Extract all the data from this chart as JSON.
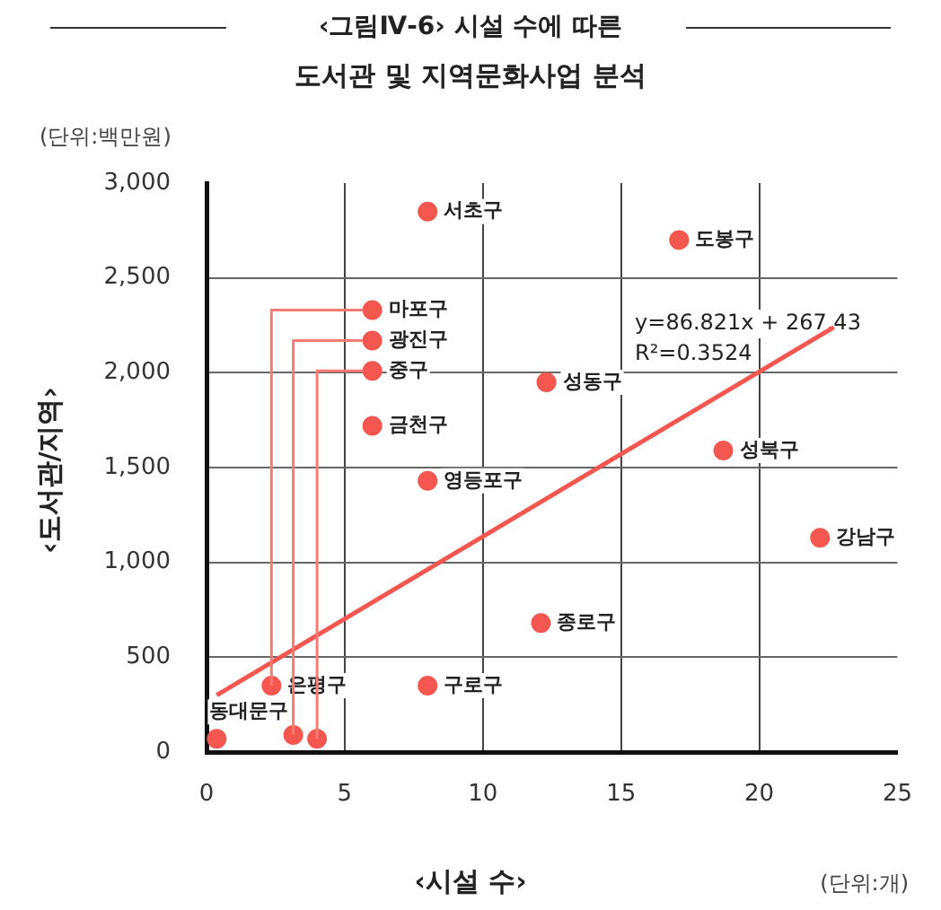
{
  "chart_data": {
    "type": "scatter",
    "title": "‹그림Ⅳ-6› 시설 수에 따른",
    "subtitle": "도서관 및 지역문화사업 분석",
    "xlabel": "‹시설 수›",
    "ylabel": "‹도서관/지역›",
    "annotations": [
      "(단위:백만원)",
      "(단위:개)",
      "y=86.821x + 267.43",
      "R²=0.3524"
    ],
    "series": [
      {
        "color": "#f4574f",
        "x": [
          8,
          17.1,
          6,
          6,
          6,
          6,
          12.3,
          8,
          18.7,
          22.2,
          12.1,
          8,
          2.35,
          0.37,
          3.14,
          4
        ],
        "values": [
          2850,
          2700,
          2330,
          2170,
          2010,
          1720,
          1950,
          1430,
          1590,
          1130,
          680,
          350,
          350,
          70,
          90,
          70
        ],
        "value_labels": [
          "서초구",
          "도봉구",
          "마포구",
          "광진구",
          "중구",
          "금천구",
          "성동구",
          "영등포구",
          "성북구",
          "강남구",
          "종로구",
          "구로구",
          "은평구",
          "동대문구",
          null,
          null
        ]
      },
      {
        "type": "line",
        "marker": "none",
        "color": "#f4574f",
        "x": [
          0.37,
          22.7
        ],
        "values": [
          300,
          2240
        ]
      }
    ],
    "xlim": [
      0,
      25
    ],
    "xticks": [
      0,
      5,
      10,
      15,
      20,
      25
    ],
    "ylim": [
      0,
      3000
    ],
    "yticks": [
      0,
      500,
      {
        "value": 1000,
        "label": "1,000"
      },
      {
        "value": 1500,
        "label": "1,500"
      },
      {
        "value": 2000,
        "label": "2,000"
      },
      {
        "value": 2500,
        "label": "2,500"
      },
      {
        "value": 3000,
        "label": "3,000"
      }
    ],
    "grid": true,
    "legend": false,
    "marker": "circle"
  }
}
